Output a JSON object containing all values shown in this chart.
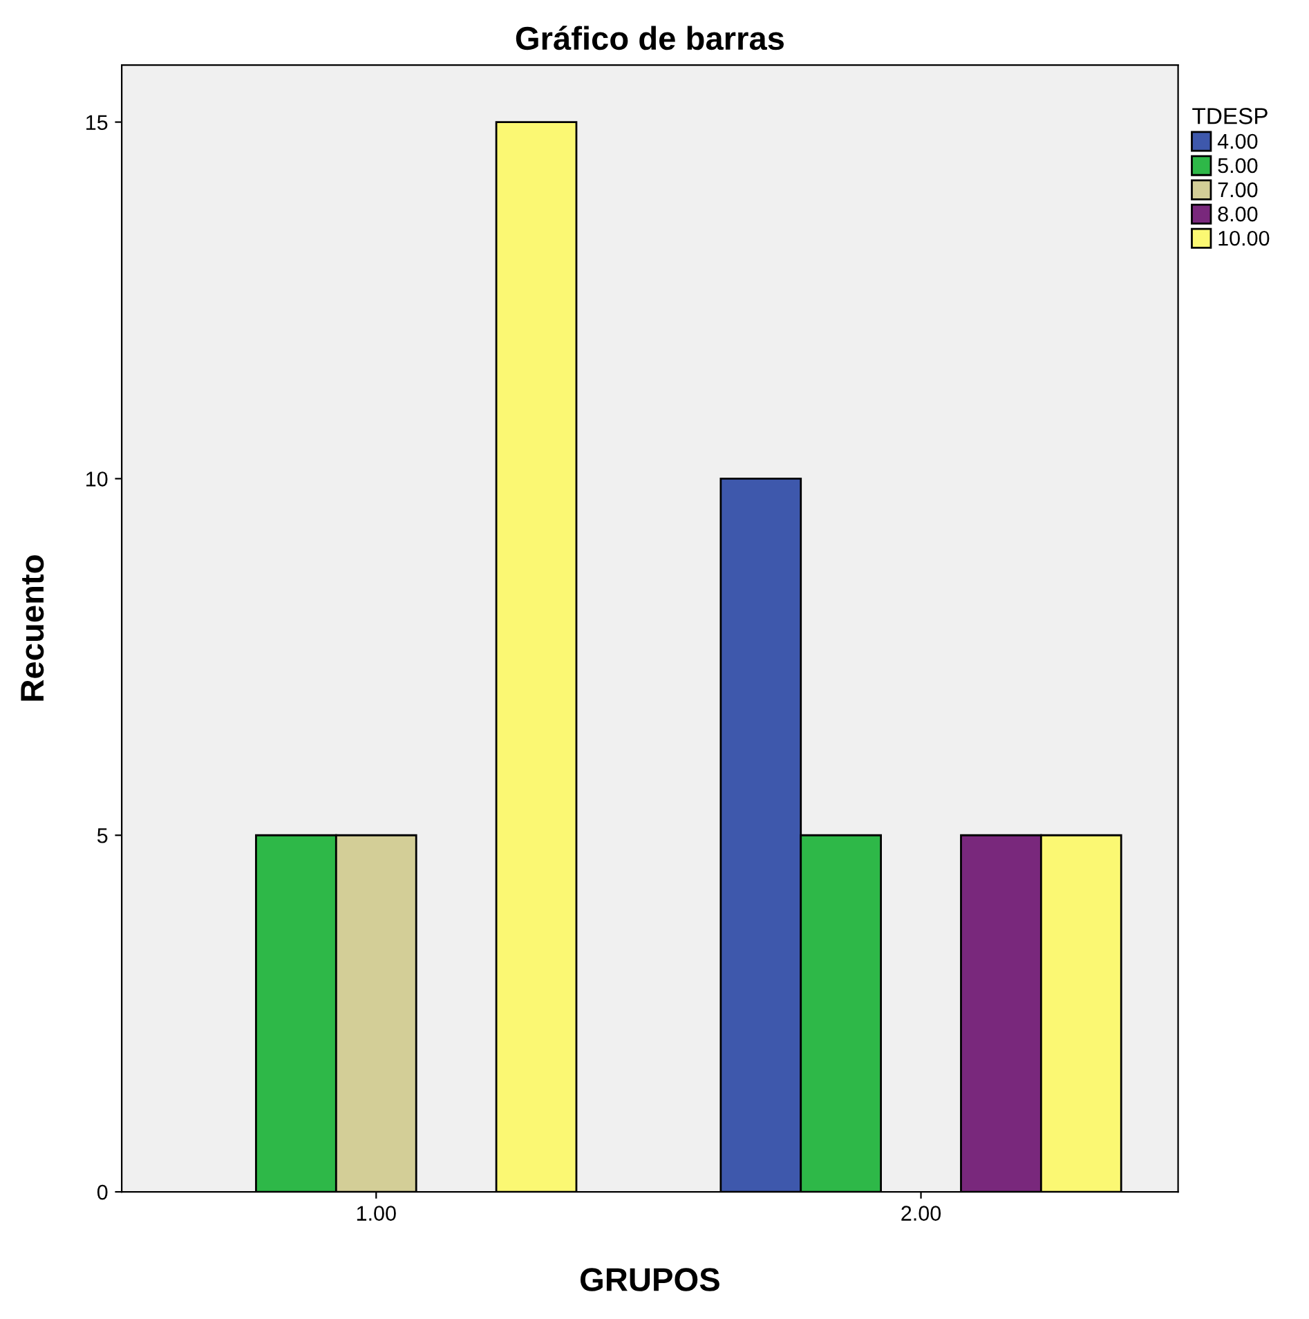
{
  "chart_data": {
    "type": "bar",
    "title": "Gráfico de barras",
    "xlabel": "GRUPOS",
    "ylabel": "Recuento",
    "legend_title": "TDESP",
    "categories": [
      "1.00",
      "2.00"
    ],
    "series": [
      {
        "name": "4.00",
        "color": "#3e58ac",
        "values": [
          null,
          10
        ]
      },
      {
        "name": "5.00",
        "color": "#2eb848",
        "values": [
          5,
          5
        ]
      },
      {
        "name": "7.00",
        "color": "#d3ce97",
        "values": [
          5,
          null
        ]
      },
      {
        "name": "8.00",
        "color": "#79287c",
        "values": [
          null,
          5
        ]
      },
      {
        "name": "10.00",
        "color": "#fbf873",
        "values": [
          15,
          5
        ]
      }
    ],
    "ylim": [
      0,
      15.8
    ],
    "yticks": [
      0,
      5,
      10,
      15
    ],
    "grid": false,
    "legend": "top right"
  }
}
